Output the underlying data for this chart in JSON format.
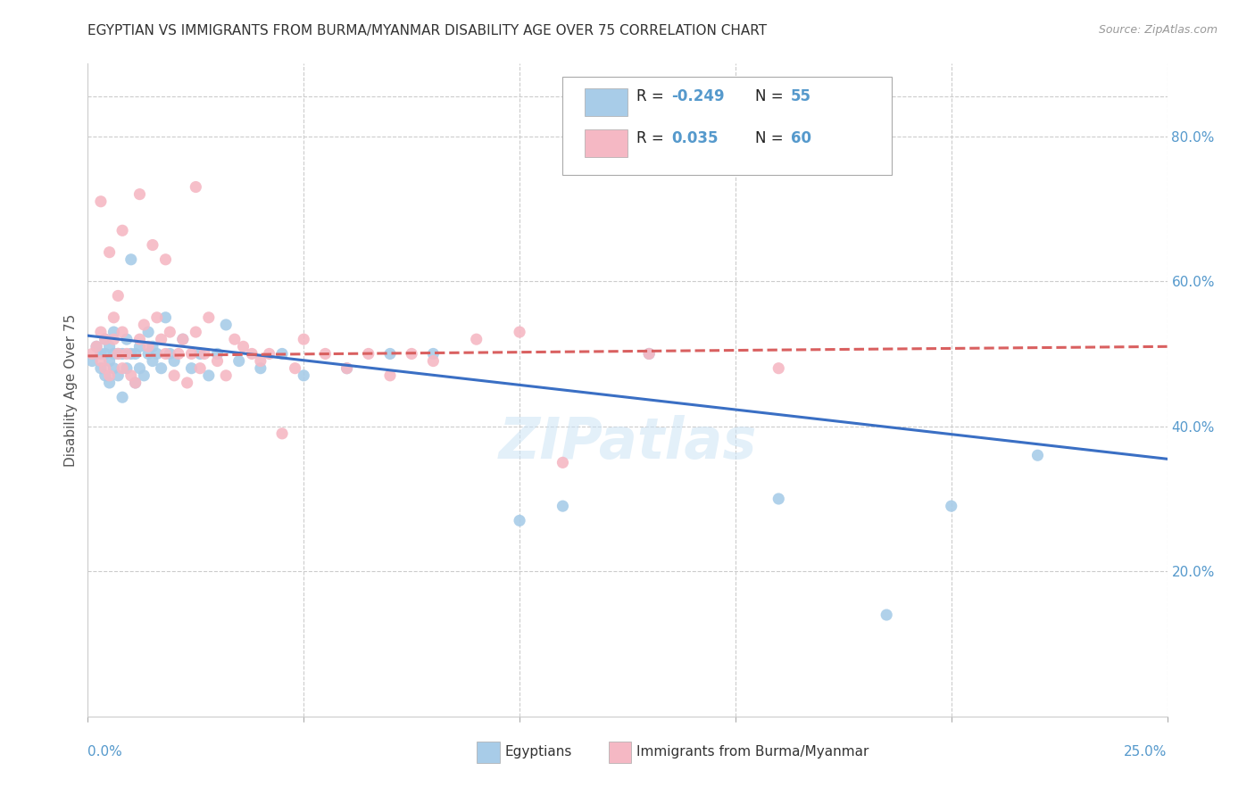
{
  "title": "EGYPTIAN VS IMMIGRANTS FROM BURMA/MYANMAR DISABILITY AGE OVER 75 CORRELATION CHART",
  "source": "Source: ZipAtlas.com",
  "ylabel": "Disability Age Over 75",
  "right_yticks": [
    "80.0%",
    "60.0%",
    "40.0%",
    "20.0%"
  ],
  "right_ytick_vals": [
    0.8,
    0.6,
    0.4,
    0.2
  ],
  "blue_color": "#a8cce8",
  "pink_color": "#f5b8c4",
  "blue_line_color": "#3a6fc4",
  "pink_line_color": "#d96060",
  "legend_label1": "Egyptians",
  "legend_label2": "Immigrants from Burma/Myanmar",
  "background_color": "#ffffff",
  "grid_color": "#cccccc",
  "title_color": "#333333",
  "axis_color": "#5599cc",
  "text_dark": "#222222",
  "xlim": [
    0.0,
    0.25
  ],
  "ylim": [
    0.0,
    0.9
  ],
  "top_gridline": 0.855,
  "blue_scatter_x": [
    0.001,
    0.002,
    0.003,
    0.003,
    0.004,
    0.004,
    0.004,
    0.005,
    0.005,
    0.005,
    0.006,
    0.006,
    0.006,
    0.007,
    0.007,
    0.008,
    0.008,
    0.009,
    0.009,
    0.01,
    0.01,
    0.011,
    0.011,
    0.012,
    0.012,
    0.013,
    0.014,
    0.014,
    0.015,
    0.015,
    0.016,
    0.017,
    0.018,
    0.019,
    0.02,
    0.022,
    0.024,
    0.026,
    0.028,
    0.03,
    0.032,
    0.035,
    0.04,
    0.045,
    0.05,
    0.06,
    0.07,
    0.08,
    0.1,
    0.11,
    0.13,
    0.16,
    0.185,
    0.2,
    0.22
  ],
  "blue_scatter_y": [
    0.49,
    0.51,
    0.48,
    0.5,
    0.47,
    0.5,
    0.52,
    0.49,
    0.46,
    0.51,
    0.48,
    0.5,
    0.53,
    0.47,
    0.5,
    0.44,
    0.5,
    0.48,
    0.52,
    0.5,
    0.63,
    0.46,
    0.5,
    0.48,
    0.51,
    0.47,
    0.5,
    0.53,
    0.49,
    0.51,
    0.5,
    0.48,
    0.55,
    0.5,
    0.49,
    0.52,
    0.48,
    0.5,
    0.47,
    0.5,
    0.54,
    0.49,
    0.48,
    0.5,
    0.47,
    0.48,
    0.5,
    0.5,
    0.27,
    0.29,
    0.5,
    0.3,
    0.14,
    0.29,
    0.36
  ],
  "pink_scatter_x": [
    0.001,
    0.002,
    0.003,
    0.003,
    0.004,
    0.004,
    0.005,
    0.005,
    0.006,
    0.006,
    0.007,
    0.007,
    0.008,
    0.008,
    0.009,
    0.01,
    0.011,
    0.012,
    0.013,
    0.014,
    0.015,
    0.016,
    0.017,
    0.018,
    0.019,
    0.02,
    0.021,
    0.022,
    0.023,
    0.024,
    0.025,
    0.026,
    0.027,
    0.028,
    0.03,
    0.032,
    0.034,
    0.036,
    0.038,
    0.04,
    0.042,
    0.045,
    0.048,
    0.05,
    0.055,
    0.06,
    0.065,
    0.07,
    0.075,
    0.08,
    0.09,
    0.1,
    0.11,
    0.13,
    0.16,
    0.003,
    0.008,
    0.012,
    0.018,
    0.025
  ],
  "pink_scatter_y": [
    0.5,
    0.51,
    0.49,
    0.53,
    0.48,
    0.52,
    0.47,
    0.64,
    0.52,
    0.55,
    0.5,
    0.58,
    0.48,
    0.53,
    0.5,
    0.47,
    0.46,
    0.52,
    0.54,
    0.51,
    0.65,
    0.55,
    0.52,
    0.5,
    0.53,
    0.47,
    0.5,
    0.52,
    0.46,
    0.5,
    0.53,
    0.48,
    0.5,
    0.55,
    0.49,
    0.47,
    0.52,
    0.51,
    0.5,
    0.49,
    0.5,
    0.39,
    0.48,
    0.52,
    0.5,
    0.48,
    0.5,
    0.47,
    0.5,
    0.49,
    0.52,
    0.53,
    0.35,
    0.5,
    0.48,
    0.71,
    0.67,
    0.72,
    0.63,
    0.73
  ],
  "blue_trend_x": [
    0.0,
    0.25
  ],
  "blue_trend_y": [
    0.525,
    0.355
  ],
  "pink_trend_x": [
    0.0,
    0.25
  ],
  "pink_trend_y": [
    0.497,
    0.51
  ]
}
